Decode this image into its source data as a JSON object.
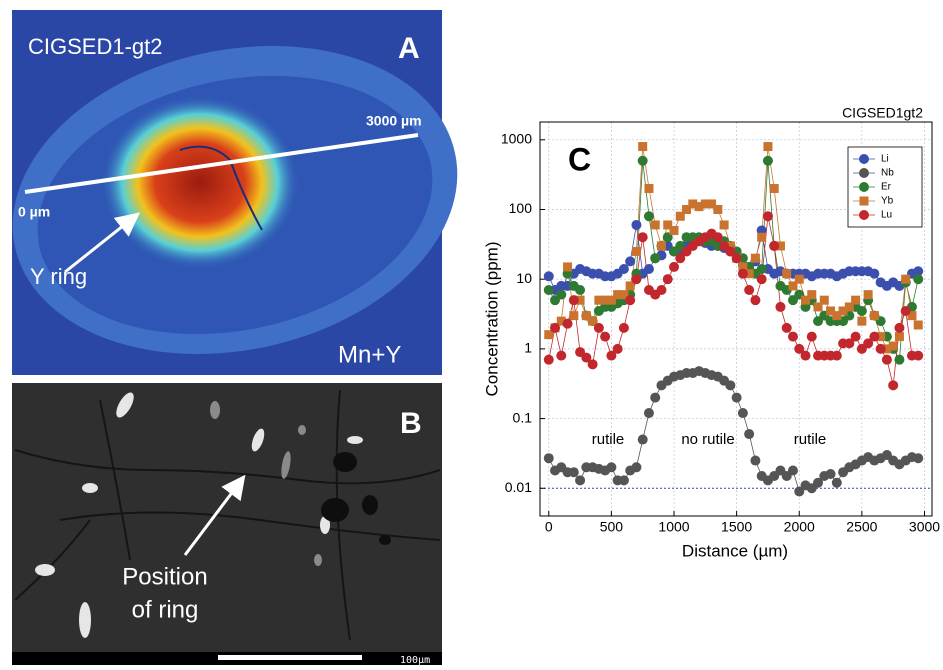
{
  "panel_a": {
    "title": "CIGSED1-gt2",
    "letter": "A",
    "end_label": "3000 µm",
    "start_label": "0 µm",
    "arrow_label": "Y ring",
    "corner_label": "Mn+Y"
  },
  "panel_b": {
    "letter": "B",
    "arrow_label": [
      "Position",
      "of ring"
    ],
    "scale_label": "100µm"
  },
  "chart_data": {
    "type": "scatter-line",
    "title": "CIGSED1gt2",
    "panel_letter": "C",
    "x_label": "Distance (µm)",
    "y_label": "Concentration (ppm)",
    "log_y": true,
    "grid": true,
    "legend": "top-right",
    "annotations": [
      "rutile",
      "no rutile",
      "rutile"
    ],
    "xlim": [
      -70,
      3060
    ],
    "xticks": [
      0,
      500,
      1000,
      1500,
      2000,
      2500,
      3000
    ],
    "ylim": [
      0.004,
      1800
    ],
    "yticks": [
      0.01,
      0.1,
      1,
      10,
      100,
      1000
    ],
    "x": [
      0,
      50,
      100,
      150,
      200,
      250,
      300,
      350,
      400,
      450,
      500,
      550,
      600,
      650,
      700,
      750,
      800,
      850,
      900,
      950,
      1000,
      1050,
      1100,
      1150,
      1200,
      1250,
      1300,
      1350,
      1400,
      1450,
      1500,
      1550,
      1600,
      1650,
      1700,
      1750,
      1800,
      1850,
      1900,
      1950,
      2000,
      2050,
      2100,
      2150,
      2200,
      2250,
      2300,
      2350,
      2400,
      2450,
      2500,
      2550,
      2600,
      2650,
      2700,
      2750,
      2800,
      2850,
      2900,
      2950
    ],
    "series": [
      {
        "name": "Li",
        "color": "#3a4fae",
        "marker": "circle",
        "values": [
          11,
          7,
          8,
          8,
          12,
          14,
          13,
          12,
          12,
          11,
          11,
          12,
          14,
          18,
          60,
          12,
          14,
          20,
          22,
          30,
          25,
          25,
          30,
          35,
          35,
          33,
          30,
          30,
          28,
          25,
          22,
          16,
          14,
          18,
          50,
          14,
          12,
          13,
          12,
          12,
          12,
          12,
          11,
          12,
          12,
          12,
          11,
          12,
          13,
          13,
          13,
          13,
          12,
          9,
          8,
          9,
          8,
          9,
          12,
          13
        ]
      },
      {
        "name": "Nb",
        "color": "#555555",
        "marker": "circle",
        "values": [
          0.027,
          0.018,
          0.02,
          0.017,
          0.017,
          0.013,
          0.02,
          0.02,
          0.019,
          0.018,
          0.02,
          0.013,
          0.013,
          0.018,
          0.02,
          0.05,
          0.12,
          0.2,
          0.3,
          0.35,
          0.4,
          0.42,
          0.45,
          0.45,
          0.48,
          0.45,
          0.42,
          0.4,
          0.35,
          0.3,
          0.2,
          0.12,
          0.06,
          0.025,
          0.015,
          0.013,
          0.015,
          0.018,
          0.015,
          0.018,
          0.009,
          0.011,
          0.01,
          0.012,
          0.015,
          0.016,
          0.012,
          0.017,
          0.02,
          0.022,
          0.025,
          0.028,
          0.025,
          0.027,
          0.03,
          0.025,
          0.022,
          0.025,
          0.028,
          0.027
        ]
      },
      {
        "name": "Er",
        "color": "#2f7a32",
        "marker": "circle",
        "values": [
          7,
          5,
          6,
          12,
          8,
          7,
          3,
          2.5,
          3.5,
          4,
          4,
          4.5,
          5,
          6,
          12,
          500,
          80,
          20,
          30,
          40,
          25,
          30,
          40,
          40,
          40,
          35,
          35,
          30,
          35,
          30,
          25,
          20,
          15,
          12,
          14,
          500,
          30,
          8,
          7,
          5,
          6,
          4,
          5,
          2.5,
          3,
          2.5,
          2.5,
          2.5,
          3,
          4,
          3.5,
          5,
          3,
          2.5,
          1.5,
          1,
          0.7,
          9,
          4,
          10
        ]
      },
      {
        "name": "Yb",
        "color": "#c9732e",
        "marker": "square",
        "values": [
          1.6,
          2,
          2.5,
          15,
          3,
          5,
          3,
          2.5,
          5,
          5,
          5,
          6,
          6,
          8,
          25,
          800,
          200,
          60,
          30,
          60,
          50,
          80,
          100,
          120,
          110,
          120,
          120,
          100,
          60,
          30,
          20,
          15,
          12,
          20,
          40,
          800,
          200,
          30,
          12,
          8,
          10,
          5,
          6,
          4,
          5,
          3.5,
          3,
          3.5,
          4,
          5,
          2.5,
          6,
          3,
          1.5,
          1,
          1.1,
          1.5,
          10,
          3,
          2.2
        ]
      },
      {
        "name": "Lu",
        "color": "#c1272d",
        "marker": "circle",
        "values": [
          0.7,
          2,
          0.8,
          2.3,
          5,
          0.9,
          0.75,
          0.6,
          2,
          1.5,
          0.8,
          1,
          2,
          5,
          10,
          40,
          7,
          6,
          7,
          10,
          15,
          20,
          25,
          30,
          35,
          40,
          45,
          40,
          30,
          25,
          20,
          12,
          7,
          5,
          10,
          80,
          30,
          4,
          2,
          1.5,
          1,
          0.8,
          1.5,
          0.8,
          0.8,
          0.8,
          0.8,
          1.2,
          1.2,
          1.5,
          1,
          1.2,
          1.5,
          1,
          0.7,
          0.3,
          2,
          3.5,
          0.8,
          0.8
        ]
      }
    ]
  }
}
